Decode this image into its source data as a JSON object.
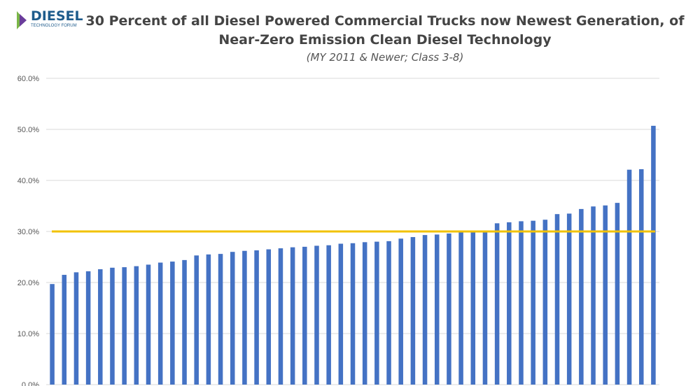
{
  "logo": {
    "word": "DIESEL",
    "sub": "TECHNOLOGY FORUM"
  },
  "colors": {
    "bar": "#4472c4",
    "ref": "#f2c200",
    "grid": "#d9d9d9"
  },
  "chart_data": {
    "type": "bar",
    "title": "30 Percent of all Diesel Powered Commercial Trucks now Newest Generation, of",
    "title_line2": "Near-Zero Emission Clean Diesel Technology",
    "subtitle": "(MY 2011 & Newer; Class 3-8)",
    "xlabel": "",
    "ylabel": "",
    "ylim": [
      0,
      60
    ],
    "yticks": [
      "0.0%",
      "10.0%",
      "20.0%",
      "30.0%",
      "40.0%",
      "50.0%",
      "60.0%"
    ],
    "reference_line": 30,
    "values": [
      19.7,
      21.5,
      22.0,
      22.2,
      22.6,
      22.9,
      23.0,
      23.2,
      23.5,
      23.9,
      24.1,
      24.4,
      25.3,
      25.5,
      25.6,
      26.0,
      26.2,
      26.3,
      26.5,
      26.7,
      26.9,
      27.0,
      27.2,
      27.3,
      27.6,
      27.7,
      27.9,
      28.0,
      28.1,
      28.6,
      28.9,
      29.3,
      29.4,
      29.6,
      29.8,
      29.9,
      30.0,
      31.6,
      31.8,
      32.0,
      32.1,
      32.3,
      33.4,
      33.5,
      34.4,
      34.9,
      35.1,
      35.6,
      42.1,
      42.2,
      50.7
    ]
  }
}
